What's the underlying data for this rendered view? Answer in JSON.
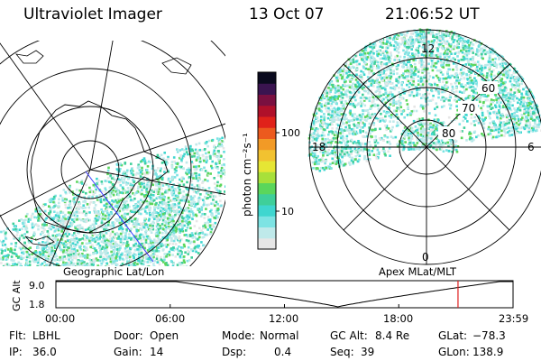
{
  "header": {
    "instrument": "Ultraviolet Imager",
    "date": "13 Oct 07",
    "time": "21:06:52 UT"
  },
  "colorbar": {
    "unit_label": "photon cm⁻²s⁻¹",
    "tick_100": "100",
    "tick_10": "10",
    "colors": [
      "#e6e6e6",
      "#bfe9ea",
      "#7de3e3",
      "#3fd6cf",
      "#3fcf9a",
      "#5bd65b",
      "#a8e03a",
      "#e6e634",
      "#f2c230",
      "#f29a26",
      "#ec5a1e",
      "#e0221a",
      "#b0102a",
      "#7a1040",
      "#3a1450",
      "#0a0a1e"
    ]
  },
  "geo_map": {
    "label": "Geographic Lat/Lon"
  },
  "mag_map": {
    "label": "Apex  MLat/MLT",
    "mlt_12": "12",
    "mlt_18": "18",
    "mlt_6": "6",
    "mlt_0": "0",
    "lat_60": "60",
    "lat_70": "70",
    "lat_80": "80"
  },
  "altitude_plot": {
    "ylabel": "GC Alt",
    "ytick_top": "9.0",
    "ytick_bottom": "1.8",
    "xticks": [
      "00:00",
      "06:00",
      "12:00",
      "18:00",
      "23:59"
    ],
    "current_time_hours": 21.11,
    "curve_color": "#000000",
    "marker_color": "#e02020"
  },
  "info": {
    "flt_label": "Flt:",
    "flt_value": "LBHL",
    "door_label": "Door:",
    "door_value": "Open",
    "mode_label": "Mode:",
    "mode_value": "Normal",
    "gcalt_label": "GC Alt:",
    "gcalt_value": "8.4 Re",
    "glat_label": "GLat:",
    "glat_value": "−78.3",
    "ip_label": "IP:",
    "ip_value": "36.0",
    "gain_label": "Gain:",
    "gain_value": "14",
    "dsp_label": "Dsp:",
    "dsp_value": "0.4",
    "seq_label": "Seq:",
    "seq_value": "39",
    "glon_label": "GLon:",
    "glon_value": "138.9"
  }
}
